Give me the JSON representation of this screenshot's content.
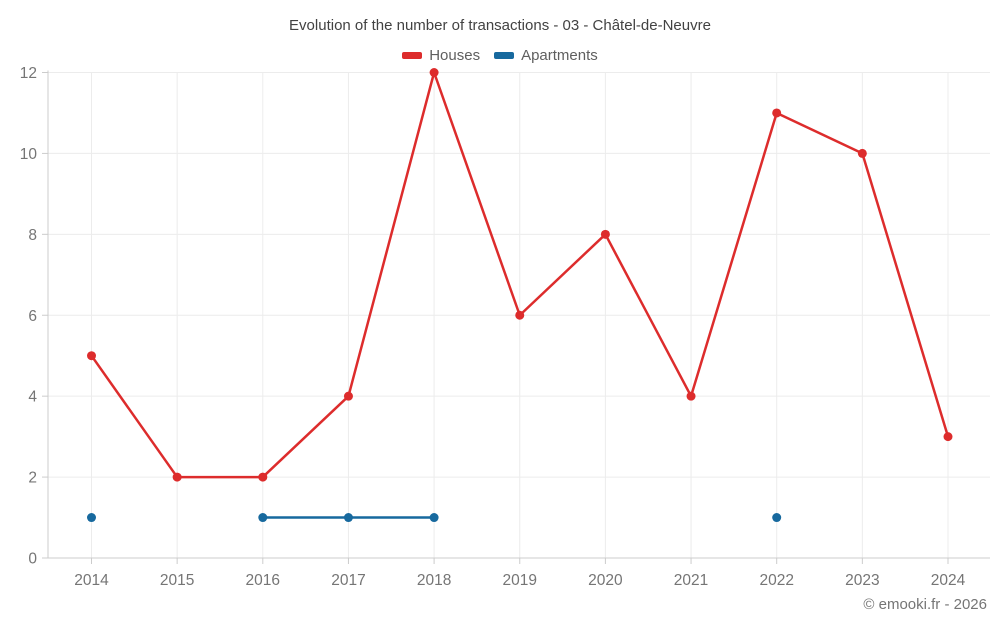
{
  "chart": {
    "title": "Evolution of the number of transactions - 03 - Châtel-de-Neuvre",
    "watermark": "© emooki.fr - 2026",
    "colors": {
      "houses": "#dd2c2c",
      "apartments": "#17699e",
      "grid": "#ececec",
      "axis": "#cccccc",
      "tick_label": "#757575",
      "title_text": "#424242",
      "legend_text": "#5f5f5f",
      "background": "#ffffff"
    }
  },
  "chart_data": {
    "type": "line",
    "title": "Evolution of the number of transactions - 03 - Châtel-de-Neuvre",
    "categories": [
      "2014",
      "2015",
      "2016",
      "2017",
      "2018",
      "2019",
      "2020",
      "2021",
      "2022",
      "2023",
      "2024"
    ],
    "series": [
      {
        "name": "Houses",
        "color_key": "houses",
        "values": [
          5,
          2,
          2,
          4,
          12,
          6,
          8,
          4,
          11,
          10,
          3
        ]
      },
      {
        "name": "Apartments",
        "color_key": "apartments",
        "values": [
          1,
          null,
          1,
          1,
          1,
          null,
          null,
          null,
          1,
          null,
          null
        ]
      }
    ],
    "yticks": [
      0,
      2,
      4,
      6,
      8,
      10,
      12
    ],
    "ylim": [
      0,
      12
    ],
    "xlabel": "",
    "ylabel": "",
    "grid": true,
    "legend_position": "top"
  }
}
